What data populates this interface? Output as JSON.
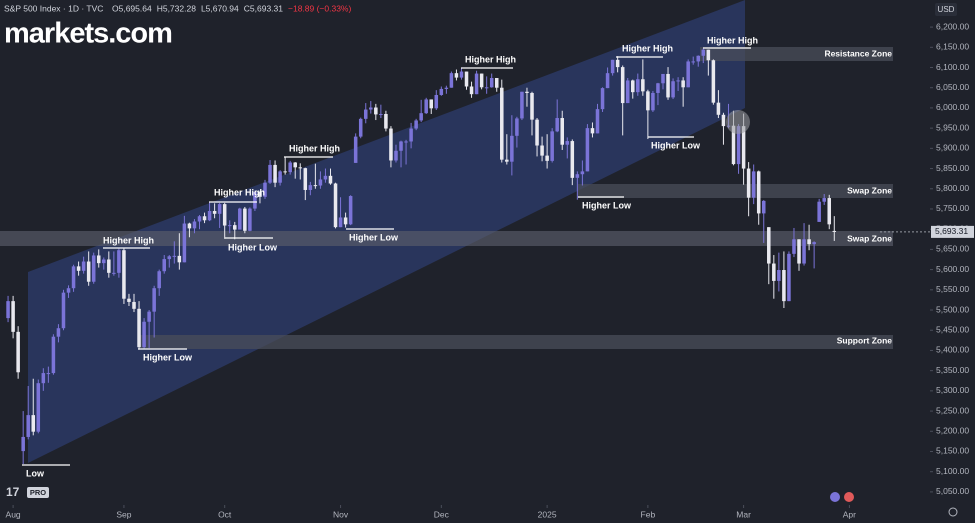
{
  "brand": "markets.com",
  "header": {
    "symbol": "S&P 500 Index · 1D · TVC",
    "readout": [
      "O5,695.64",
      "H5,732.28",
      "L5,670.94",
      "C5,693.31",
      "−18.89 (−0.33%)"
    ]
  },
  "currency": "USD",
  "tv_badge": "PRO",
  "chart_data": {
    "type": "candlestick",
    "up_color": "#7b74d8",
    "down_color": "#e9e9ef",
    "xlim": [
      -1.6,
      183
    ],
    "ylim": [
      5030,
      6267
    ],
    "grid": false,
    "xticks": [
      {
        "value": 1,
        "label": "Aug"
      },
      {
        "value": 23,
        "label": "Sep"
      },
      {
        "value": 43,
        "label": "Oct"
      },
      {
        "value": 66,
        "label": "Nov"
      },
      {
        "value": 86,
        "label": "Dec"
      },
      {
        "value": 107,
        "label": "2025"
      },
      {
        "value": 127,
        "label": "Feb"
      },
      {
        "value": 146,
        "label": "Mar"
      },
      {
        "value": 167,
        "label": "Apr"
      }
    ],
    "yticks": [
      {
        "value": 5050,
        "label": "5,050.00"
      },
      {
        "value": 5100,
        "label": "5,100.00"
      },
      {
        "value": 5150,
        "label": "5,150.00"
      },
      {
        "value": 5200,
        "label": "5,200.00"
      },
      {
        "value": 5250,
        "label": "5,250.00"
      },
      {
        "value": 5300,
        "label": "5,300.00"
      },
      {
        "value": 5350,
        "label": "5,350.00"
      },
      {
        "value": 5400,
        "label": "5,400.00"
      },
      {
        "value": 5450,
        "label": "5,450.00"
      },
      {
        "value": 5500,
        "label": "5,500.00"
      },
      {
        "value": 5550,
        "label": "5,550.00"
      },
      {
        "value": 5600,
        "label": "5,600.00"
      },
      {
        "value": 5650,
        "label": "5,650.00"
      },
      {
        "value": 5700,
        "label": "5,700.00"
      },
      {
        "value": 5750,
        "label": "5,750.00"
      },
      {
        "value": 5800,
        "label": "5,800.00"
      },
      {
        "value": 5850,
        "label": "5,850.00"
      },
      {
        "value": 5900,
        "label": "5,900.00"
      },
      {
        "value": 5950,
        "label": "5,950.00"
      },
      {
        "value": 6000,
        "label": "6,000.00"
      },
      {
        "value": 6050,
        "label": "6,050.00"
      },
      {
        "value": 6100,
        "label": "6,100.00"
      },
      {
        "value": 6150,
        "label": "6,150.00"
      },
      {
        "value": 6200,
        "label": "6,200.00"
      }
    ],
    "last_price": {
      "value": 5693.31,
      "label": "5,693.31"
    },
    "annotations": [
      "Low",
      "Higher Low",
      "Higher High",
      "Higher Low",
      "Higher High",
      "Higher High",
      "Higher Low",
      "Higher High",
      "Higher Low",
      "Higher High",
      "Higher Low",
      "Higher High"
    ],
    "zones": [
      "Resistance Zone",
      "Swap Zone",
      "Swap Zone",
      "Support Zone"
    ],
    "series": [
      {
        "name": "S&P 500 Index",
        "ohlc": [
          [
            5480,
            5535,
            5470,
            5522
          ],
          [
            5522,
            5535,
            5430,
            5446
          ],
          [
            5446,
            5460,
            5330,
            5346
          ],
          [
            5151,
            5250,
            5119,
            5186
          ],
          [
            5186,
            5312,
            5180,
            5240
          ],
          [
            5240,
            5330,
            5190,
            5199
          ],
          [
            5199,
            5328,
            5195,
            5319
          ],
          [
            5319,
            5356,
            5300,
            5344
          ],
          [
            5344,
            5360,
            5320,
            5344
          ],
          [
            5344,
            5440,
            5340,
            5434
          ],
          [
            5434,
            5465,
            5420,
            5455
          ],
          [
            5455,
            5550,
            5450,
            5543
          ],
          [
            5543,
            5561,
            5530,
            5554
          ],
          [
            5554,
            5612,
            5545,
            5608
          ],
          [
            5608,
            5620,
            5585,
            5597
          ],
          [
            5597,
            5632,
            5590,
            5620
          ],
          [
            5620,
            5645,
            5560,
            5570
          ],
          [
            5570,
            5642,
            5565,
            5635
          ],
          [
            5635,
            5650,
            5605,
            5616
          ],
          [
            5616,
            5630,
            5600,
            5625
          ],
          [
            5625,
            5645,
            5580,
            5592
          ],
          [
            5592,
            5645,
            5585,
            5592
          ],
          [
            5592,
            5652,
            5580,
            5648
          ],
          [
            5648,
            5652,
            5515,
            5528
          ],
          [
            5528,
            5540,
            5510,
            5520
          ],
          [
            5520,
            5540,
            5495,
            5503
          ],
          [
            5503,
            5522,
            5402,
            5408
          ],
          [
            5408,
            5480,
            5405,
            5471
          ],
          [
            5471,
            5500,
            5406,
            5496
          ],
          [
            5496,
            5560,
            5432,
            5554
          ],
          [
            5554,
            5600,
            5535,
            5596
          ],
          [
            5596,
            5636,
            5590,
            5626
          ],
          [
            5626,
            5636,
            5605,
            5633
          ],
          [
            5633,
            5670,
            5615,
            5634
          ],
          [
            5634,
            5690,
            5600,
            5618
          ],
          [
            5618,
            5733,
            5618,
            5714
          ],
          [
            5714,
            5716,
            5680,
            5702
          ],
          [
            5702,
            5725,
            5690,
            5719
          ],
          [
            5719,
            5735,
            5700,
            5732
          ],
          [
            5732,
            5741,
            5715,
            5722
          ],
          [
            5722,
            5767,
            5720,
            5745
          ],
          [
            5745,
            5764,
            5727,
            5738
          ],
          [
            5738,
            5765,
            5703,
            5762
          ],
          [
            5762,
            5765,
            5676,
            5709
          ],
          [
            5709,
            5722,
            5690,
            5710
          ],
          [
            5710,
            5718,
            5675,
            5699
          ],
          [
            5699,
            5753,
            5700,
            5751
          ],
          [
            5751,
            5755,
            5690,
            5696
          ],
          [
            5696,
            5754,
            5695,
            5751
          ],
          [
            5751,
            5796,
            5745,
            5792
          ],
          [
            5792,
            5795,
            5764,
            5780
          ],
          [
            5780,
            5822,
            5775,
            5815
          ],
          [
            5815,
            5871,
            5812,
            5859
          ],
          [
            5859,
            5870,
            5804,
            5815
          ],
          [
            5815,
            5846,
            5808,
            5843
          ],
          [
            5843,
            5878,
            5835,
            5841
          ],
          [
            5841,
            5869,
            5835,
            5865
          ],
          [
            5865,
            5866,
            5825,
            5853
          ],
          [
            5853,
            5863,
            5823,
            5851
          ],
          [
            5851,
            5852,
            5772,
            5797
          ],
          [
            5797,
            5817,
            5784,
            5809
          ],
          [
            5809,
            5862,
            5800,
            5808
          ],
          [
            5808,
            5843,
            5800,
            5823
          ],
          [
            5823,
            5850,
            5815,
            5832
          ],
          [
            5832,
            5850,
            5810,
            5813
          ],
          [
            5813,
            5815,
            5702,
            5705
          ],
          [
            5705,
            5779,
            5705,
            5729
          ],
          [
            5729,
            5741,
            5704,
            5712
          ],
          [
            5712,
            5784,
            5710,
            5782
          ],
          [
            5864,
            5937,
            5864,
            5929
          ],
          [
            5929,
            5976,
            5925,
            5973
          ],
          [
            5973,
            6012,
            5962,
            5996
          ],
          [
            5996,
            6017,
            5986,
            6001
          ],
          [
            6001,
            6010,
            5970,
            5984
          ],
          [
            5984,
            6008,
            5975,
            5985
          ],
          [
            5985,
            5993,
            5942,
            5949
          ],
          [
            5949,
            5955,
            5853,
            5870
          ],
          [
            5870,
            5909,
            5865,
            5894
          ],
          [
            5894,
            5919,
            5853,
            5917
          ],
          [
            5917,
            5921,
            5860,
            5917
          ],
          [
            5917,
            5963,
            5900,
            5949
          ],
          [
            5949,
            5973,
            5945,
            5969
          ],
          [
            5969,
            6020,
            5965,
            5987
          ],
          [
            5987,
            6025,
            5985,
            6021
          ],
          [
            6021,
            6021,
            5985,
            5999
          ],
          [
            5999,
            6044,
            5995,
            6032
          ],
          [
            6032,
            6053,
            6030,
            6047
          ],
          [
            6047,
            6055,
            6035,
            6050
          ],
          [
            6050,
            6090,
            6050,
            6086
          ],
          [
            6086,
            6095,
            6068,
            6075
          ],
          [
            6075,
            6099,
            6070,
            6090
          ],
          [
            6090,
            6090,
            6045,
            6053
          ],
          [
            6053,
            6065,
            6025,
            6034
          ],
          [
            6034,
            6092,
            6034,
            6085
          ],
          [
            6085,
            6085,
            6046,
            6051
          ],
          [
            6051,
            6078,
            6035,
            6051
          ],
          [
            6051,
            6085,
            6050,
            6074
          ],
          [
            6074,
            6074,
            6040,
            6050
          ],
          [
            6050,
            6070,
            5865,
            5872
          ],
          [
            5872,
            5935,
            5860,
            5867
          ],
          [
            5867,
            5982,
            5833,
            5931
          ],
          [
            5931,
            5978,
            5902,
            5974
          ],
          [
            5974,
            6040,
            5970,
            6040
          ],
          [
            6040,
            6050,
            6003,
            6037
          ],
          [
            6037,
            6040,
            5932,
            5971
          ],
          [
            5971,
            5975,
            5880,
            5907
          ],
          [
            5907,
            5929,
            5868,
            5882
          ],
          [
            5882,
            5935,
            5850,
            5869
          ],
          [
            5869,
            5950,
            5865,
            5942
          ],
          [
            5942,
            6021,
            5940,
            5975
          ],
          [
            5975,
            5993,
            5896,
            5909
          ],
          [
            5909,
            5927,
            5875,
            5918
          ],
          [
            5918,
            5922,
            5809,
            5827
          ],
          [
            5827,
            5843,
            5773,
            5836
          ],
          [
            5836,
            5870,
            5808,
            5843
          ],
          [
            5843,
            5960,
            5843,
            5950
          ],
          [
            5950,
            5964,
            5927,
            5937
          ],
          [
            5937,
            6010,
            5937,
            5997
          ],
          [
            5997,
            6051,
            5990,
            6049
          ],
          [
            6049,
            6100,
            6049,
            6086
          ],
          [
            6086,
            6119,
            6080,
            6119
          ],
          [
            6119,
            6128,
            6088,
            6101
          ],
          [
            6101,
            6105,
            5932,
            6012
          ],
          [
            6012,
            6074,
            6012,
            6068
          ],
          [
            6068,
            6070,
            6023,
            6039
          ],
          [
            6039,
            6085,
            6030,
            6071
          ],
          [
            6071,
            6120,
            6030,
            6041
          ],
          [
            6041,
            6045,
            5923,
            5994
          ],
          [
            5994,
            6042,
            5990,
            6037
          ],
          [
            6037,
            6062,
            6007,
            6061
          ],
          [
            6061,
            6084,
            6046,
            6084
          ],
          [
            6084,
            6101,
            6020,
            6026
          ],
          [
            6026,
            6073,
            6022,
            6066
          ],
          [
            6066,
            6076,
            6042,
            6068
          ],
          [
            6068,
            6076,
            6003,
            6051
          ],
          [
            6051,
            6120,
            6051,
            6115
          ],
          [
            6115,
            6127,
            6107,
            6115
          ],
          [
            6115,
            6130,
            6102,
            6129
          ],
          [
            6129,
            6147,
            6111,
            6144
          ],
          [
            6144,
            6144,
            6080,
            6118
          ],
          [
            6118,
            6120,
            6008,
            6013
          ],
          [
            6013,
            6044,
            5975,
            5983
          ],
          [
            5983,
            5988,
            5909,
            5955
          ],
          [
            5955,
            6010,
            5950,
            5956
          ],
          [
            5956,
            5993,
            5858,
            5861
          ],
          [
            5861,
            5960,
            5837,
            5955
          ],
          [
            5955,
            5986,
            5810,
            5850
          ],
          [
            5850,
            5866,
            5732,
            5778
          ],
          [
            5778,
            5860,
            5762,
            5843
          ],
          [
            5843,
            5845,
            5711,
            5739
          ],
          [
            5739,
            5772,
            5666,
            5770
          ],
          [
            5705,
            5705,
            5564,
            5615
          ],
          [
            5615,
            5636,
            5528,
            5572
          ],
          [
            5572,
            5642,
            5546,
            5599
          ],
          [
            5599,
            5645,
            5505,
            5522
          ],
          [
            5522,
            5645,
            5522,
            5639
          ],
          [
            5639,
            5703,
            5631,
            5675
          ],
          [
            5675,
            5675,
            5597,
            5615
          ],
          [
            5615,
            5715,
            5610,
            5675
          ],
          [
            5675,
            5711,
            5648,
            5663
          ],
          [
            5663,
            5670,
            5603,
            5668
          ],
          [
            5718,
            5775,
            5718,
            5768
          ],
          [
            5768,
            5787,
            5760,
            5777
          ],
          [
            5777,
            5785,
            5700,
            5712
          ],
          [
            5695.64,
            5732.28,
            5670.94,
            5693.31
          ]
        ]
      }
    ]
  }
}
